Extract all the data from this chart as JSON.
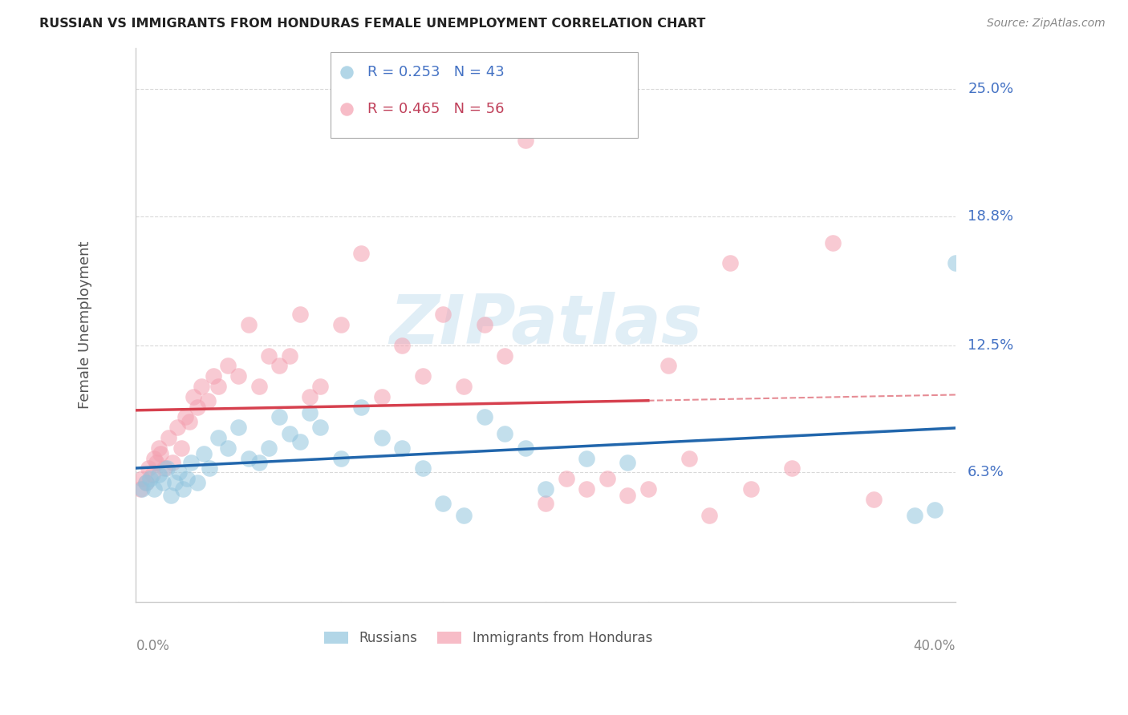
{
  "title": "RUSSIAN VS IMMIGRANTS FROM HONDURAS FEMALE UNEMPLOYMENT CORRELATION CHART",
  "source": "Source: ZipAtlas.com",
  "ylabel": "Female Unemployment",
  "ytick_labels": [
    "6.3%",
    "12.5%",
    "18.8%",
    "25.0%"
  ],
  "ytick_values": [
    6.3,
    12.5,
    18.8,
    25.0
  ],
  "xmin": 0.0,
  "xmax": 40.0,
  "ymin": 0.0,
  "ymax": 27.0,
  "watermark": "ZIPatlas",
  "legend_label_russians": "Russians",
  "legend_label_honduras": "Immigrants from Honduras",
  "blue_scatter_color": "#92c5de",
  "pink_scatter_color": "#f4a0b0",
  "blue_line_color": "#2166ac",
  "pink_line_color": "#d6404e",
  "pink_dash_color": "#d6404e",
  "russians_x": [
    0.3,
    0.5,
    0.7,
    0.9,
    1.1,
    1.3,
    1.5,
    1.7,
    1.9,
    2.1,
    2.3,
    2.5,
    2.7,
    3.0,
    3.3,
    3.6,
    4.0,
    4.5,
    5.0,
    5.5,
    6.0,
    6.5,
    7.0,
    7.5,
    8.0,
    8.5,
    9.0,
    10.0,
    11.0,
    12.0,
    13.0,
    14.0,
    15.0,
    16.0,
    17.0,
    18.0,
    19.0,
    20.0,
    22.0,
    24.0,
    38.0,
    39.0,
    40.0
  ],
  "russians_y": [
    5.5,
    5.8,
    6.0,
    5.5,
    6.2,
    5.8,
    6.5,
    5.2,
    5.8,
    6.3,
    5.5,
    6.0,
    6.8,
    5.8,
    7.2,
    6.5,
    8.0,
    7.5,
    8.5,
    7.0,
    6.8,
    7.5,
    9.0,
    8.2,
    7.8,
    9.2,
    8.5,
    7.0,
    9.5,
    8.0,
    7.5,
    6.5,
    4.8,
    4.2,
    9.0,
    8.2,
    7.5,
    5.5,
    7.0,
    6.8,
    4.2,
    4.5,
    16.5
  ],
  "honduras_x": [
    0.2,
    0.3,
    0.5,
    0.6,
    0.8,
    0.9,
    1.0,
    1.1,
    1.2,
    1.4,
    1.6,
    1.8,
    2.0,
    2.2,
    2.4,
    2.6,
    2.8,
    3.0,
    3.2,
    3.5,
    3.8,
    4.0,
    4.5,
    5.0,
    5.5,
    6.0,
    6.5,
    7.0,
    7.5,
    8.0,
    8.5,
    9.0,
    10.0,
    11.0,
    12.0,
    13.0,
    14.0,
    15.0,
    16.0,
    17.0,
    18.0,
    19.0,
    20.0,
    21.0,
    22.0,
    23.0,
    24.0,
    25.0,
    26.0,
    27.0,
    28.0,
    29.0,
    30.0,
    32.0,
    34.0,
    36.0
  ],
  "honduras_y": [
    5.5,
    6.0,
    5.8,
    6.5,
    6.2,
    7.0,
    6.8,
    7.5,
    7.2,
    6.5,
    8.0,
    6.8,
    8.5,
    7.5,
    9.0,
    8.8,
    10.0,
    9.5,
    10.5,
    9.8,
    11.0,
    10.5,
    11.5,
    11.0,
    13.5,
    10.5,
    12.0,
    11.5,
    12.0,
    14.0,
    10.0,
    10.5,
    13.5,
    17.0,
    10.0,
    12.5,
    11.0,
    14.0,
    10.5,
    13.5,
    12.0,
    22.5,
    4.8,
    6.0,
    5.5,
    6.0,
    5.2,
    5.5,
    11.5,
    7.0,
    4.2,
    16.5,
    5.5,
    6.5,
    17.5,
    5.0
  ],
  "pink_solid_end_x": 25.0,
  "blue_label_color": "#4472c4",
  "pink_label_color": "#c0405a",
  "axis_color": "#cccccc",
  "grid_color": "#d9d9d9",
  "ylabel_color": "#555555",
  "title_color": "#222222",
  "source_color": "#888888",
  "xtick_color": "#888888",
  "ytick_right_color": "#4472c4"
}
